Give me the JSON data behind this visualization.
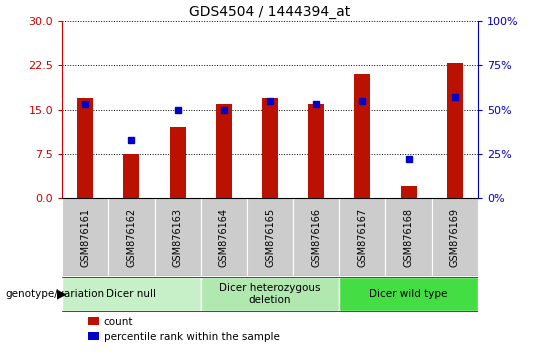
{
  "title": "GDS4504 / 1444394_at",
  "samples": [
    "GSM876161",
    "GSM876162",
    "GSM876163",
    "GSM876164",
    "GSM876165",
    "GSM876166",
    "GSM876167",
    "GSM876168",
    "GSM876169"
  ],
  "counts": [
    17.0,
    7.5,
    12.0,
    16.0,
    17.0,
    16.0,
    21.0,
    2.0,
    23.0
  ],
  "percentile_ranks_pct": [
    53,
    33,
    50,
    50,
    55,
    53,
    55,
    22,
    57
  ],
  "groups": [
    {
      "label": "Dicer null",
      "start": 0,
      "end": 3,
      "color": "#c8f0c8"
    },
    {
      "label": "Dicer heterozygous\ndeletion",
      "start": 3,
      "end": 6,
      "color": "#b0e8b0"
    },
    {
      "label": "Dicer wild type",
      "start": 6,
      "end": 9,
      "color": "#44dd44"
    }
  ],
  "ylim_left": [
    0,
    30
  ],
  "ylim_right": [
    0,
    100
  ],
  "yticks_left": [
    0,
    7.5,
    15.0,
    22.5,
    30
  ],
  "yticks_right": [
    0,
    25,
    50,
    75,
    100
  ],
  "bar_color": "#bb1100",
  "dot_color": "#0000cc",
  "left_axis_color": "#cc0000",
  "right_axis_color": "#0000bb",
  "xtick_bg_color": "#cccccc",
  "legend_count_label": "count",
  "legend_pct_label": "percentile rank within the sample"
}
